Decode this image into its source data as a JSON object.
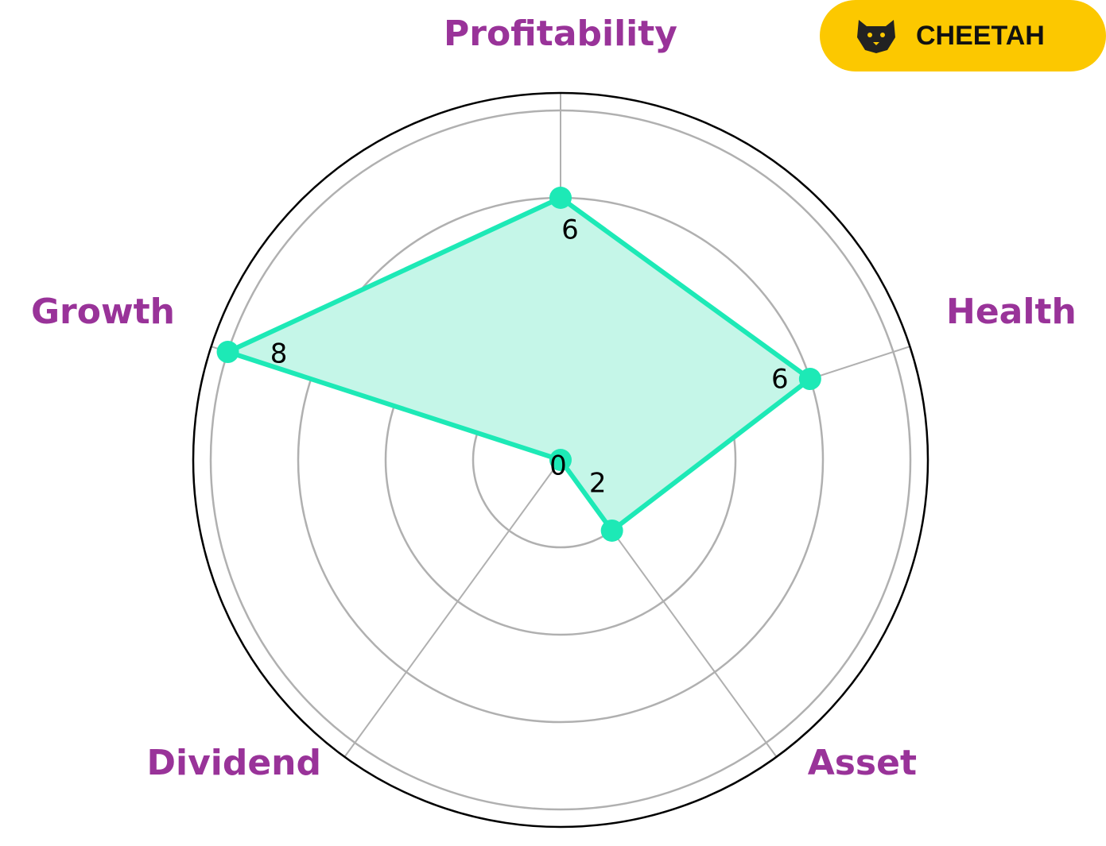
{
  "chart_data": {
    "type": "radar",
    "categories": [
      "Profitability",
      "Health",
      "Asset",
      "Dividend",
      "Growth"
    ],
    "values": [
      6,
      6,
      2,
      0,
      8
    ],
    "color": "#1de9b6",
    "fill_color": "#c5f6e8",
    "label_color": "#993399",
    "ylim": [
      0,
      8.4
    ],
    "yticks": [
      2,
      4,
      6,
      8
    ],
    "grid": true
  },
  "logo": {
    "text": "CHEETAH"
  }
}
